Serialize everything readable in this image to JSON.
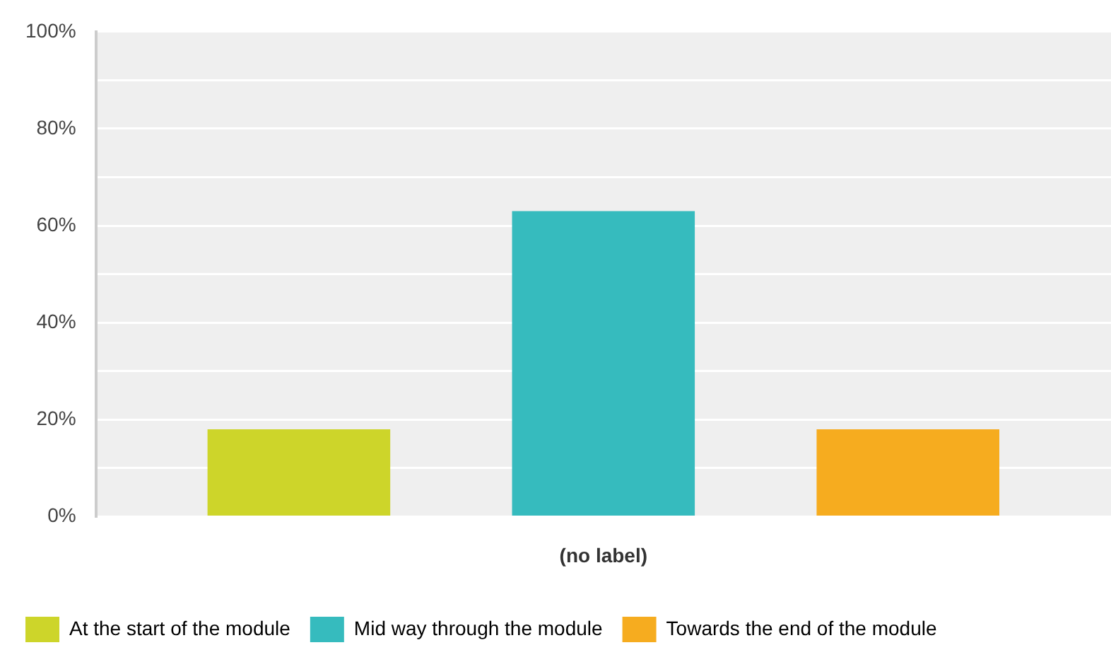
{
  "chart_data": {
    "type": "bar",
    "categories": [
      "(no label)"
    ],
    "series": [
      {
        "name": "At the start of the module",
        "color": "#cdd52a",
        "values": [
          18
        ]
      },
      {
        "name": "Mid way through the module",
        "color": "#36bbbe",
        "values": [
          63
        ]
      },
      {
        "name": "Towards the end of the module",
        "color": "#f6ac1f",
        "values": [
          18
        ]
      }
    ],
    "ylim": [
      0,
      100
    ],
    "yticks": [
      {
        "value": 0,
        "label": "0%"
      },
      {
        "value": 10,
        "label": null
      },
      {
        "value": 20,
        "label": "20%"
      },
      {
        "value": 30,
        "label": null
      },
      {
        "value": 40,
        "label": "40%"
      },
      {
        "value": 50,
        "label": null
      },
      {
        "value": 60,
        "label": "60%"
      },
      {
        "value": 70,
        "label": null
      },
      {
        "value": 80,
        "label": "80%"
      },
      {
        "value": 90,
        "label": null
      },
      {
        "value": 100,
        "label": "100%"
      }
    ],
    "grid": "y",
    "legend": "bottom left"
  }
}
